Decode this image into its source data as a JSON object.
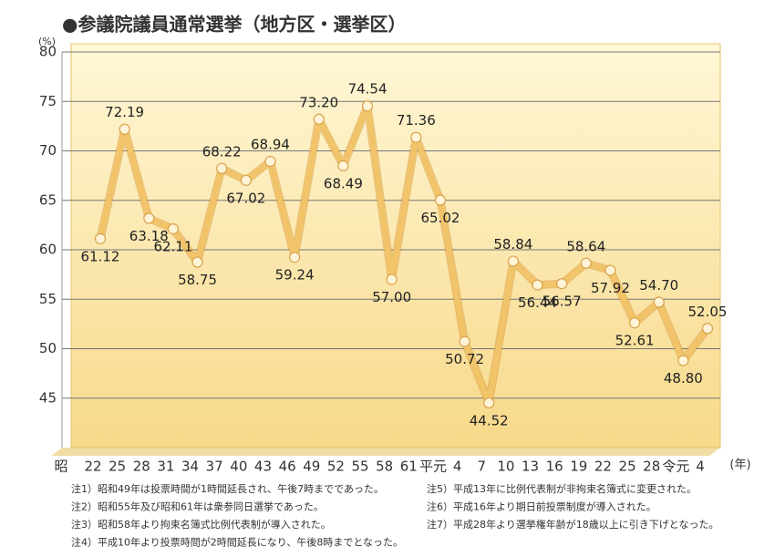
{
  "chart_data": {
    "type": "line",
    "title": "●参議院議員通常選挙（地方区・選挙区）",
    "y_unit_label": "(%)",
    "x_era_label": "昭",
    "x_unit_label": "(年)",
    "categories": [
      "22",
      "25",
      "28",
      "31",
      "34",
      "37",
      "40",
      "43",
      "46",
      "49",
      "52",
      "55",
      "58",
      "61",
      "平元",
      "4",
      "7",
      "10",
      "13",
      "16",
      "19",
      "22",
      "25",
      "28",
      "令元",
      "4"
    ],
    "series": [
      {
        "color": "#f2c46a",
        "values": [
          61.12,
          72.19,
          63.18,
          62.11,
          58.75,
          68.22,
          67.02,
          68.94,
          59.24,
          73.2,
          68.49,
          74.54,
          57.0,
          71.36,
          65.02,
          50.72,
          44.52,
          58.84,
          56.44,
          56.57,
          58.64,
          57.92,
          52.61,
          54.7,
          48.8,
          52.05
        ],
        "value_labels": [
          "61.12",
          "72.19",
          "63.18",
          "62.11",
          "58.75",
          "68.22",
          "67.02",
          "68.94",
          "59.24",
          "73.20",
          "68.49",
          "74.54",
          "57.00",
          "71.36",
          "65.02",
          "50.72",
          "44.52",
          "58.84",
          "56.44",
          "56.57",
          "58.64",
          "57.92",
          "52.61",
          "54.70",
          "48.80",
          "52.05"
        ]
      }
    ],
    "ylim": [
      40,
      80
    ],
    "yticks": [
      45,
      50,
      55,
      60,
      65,
      70,
      75,
      80
    ],
    "grid": true,
    "notes": [
      "注1）昭和49年は投票時間が1時間延長され、午後7時までであった。",
      "注2）昭和55年及び昭和61年は衆参同日選挙であった。",
      "注3）昭和58年より拘束名簿式比例代表制が導入された。",
      "注4）平成10年より投票時間が2時間延長になり、午後8時までとなった。",
      "注5）平成13年に比例代表制が非拘束名簿式に変更された。",
      "注6）平成16年より期日前投票制度が導入された。",
      "注7）平成28年より選挙権年齢が18歳以上に引き下げとなった。"
    ]
  }
}
